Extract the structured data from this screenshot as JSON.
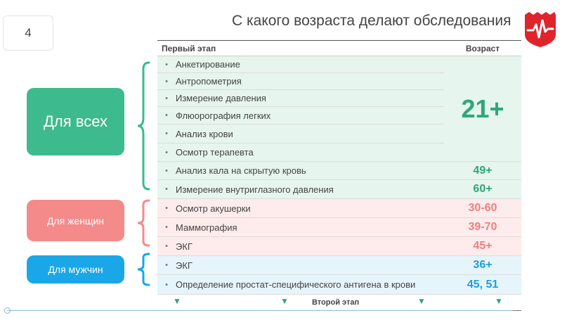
{
  "slide": {
    "number": "4",
    "title": "С какого возраста делают обследования"
  },
  "table": {
    "header_stage": "Первый этап",
    "header_age": "Возраст",
    "footer_label": "Второй этап"
  },
  "groups": {
    "all": {
      "label": "Для всех",
      "common_age": "21+",
      "common_items": [
        "Анкетирование",
        "Антропометрия",
        "Измерение давления",
        "Флюорография легких",
        "Анализ крови",
        "Осмотр терапевта"
      ],
      "rows": [
        {
          "text": "Анализ кала на скрытую кровь",
          "age": "49+"
        },
        {
          "text": "Измерение внутриглазного давления",
          "age": "60+"
        }
      ]
    },
    "women": {
      "label": "Для женщин",
      "rows": [
        {
          "text": "Осмотр акушерки",
          "age": "30-60"
        },
        {
          "text": "Маммография",
          "age": "39-70"
        },
        {
          "text": "ЭКГ",
          "age": "45+"
        }
      ]
    },
    "men": {
      "label": "Для мужчин",
      "rows": [
        {
          "text": "ЭКГ",
          "age": "36+"
        },
        {
          "text": "Определение простат-специфического антигена в крови",
          "age": "45, 51"
        }
      ]
    }
  },
  "colors": {
    "green": "#3dba8e",
    "pink": "#f58a8a",
    "blue": "#1aa7e8",
    "green_text": "#2fa67f",
    "pink_text": "#ef7e7e",
    "blue_text": "#1a9fdd",
    "logo_red": "#e0242c"
  },
  "icons": {
    "logo": "heartbeat-shield-icon",
    "arrow": "arrow-down-icon"
  }
}
